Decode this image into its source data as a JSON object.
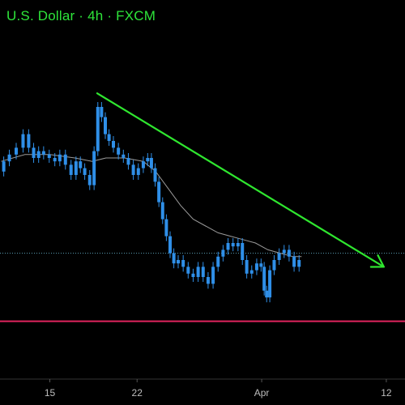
{
  "header": {
    "title": "U.S. Dollar · 4h · FXCM"
  },
  "colors": {
    "background": "#000000",
    "candle": "#2f8fe8",
    "moving_average": "#9a9a9a",
    "trendline": "#2fe62f",
    "support_line": "#e0245e",
    "price_line": "#5ba3b8",
    "title": "#2ee53a",
    "tick_text": "#bdbdbd"
  },
  "chart_data": {
    "type": "line",
    "title": "U.S. Dollar · 4h · FXCM",
    "xlabel": "",
    "ylabel": "",
    "grid": false,
    "x_ticks": [
      {
        "label": "15",
        "day": 15
      },
      {
        "label": "22",
        "day": 22
      },
      {
        "label": "Apr",
        "day": 32
      },
      {
        "label": "12",
        "day": 42
      }
    ],
    "xlim": [
      11.0,
      43.5
    ],
    "ylim": [
      0,
      100
    ],
    "series": [
      {
        "kind": "price",
        "points": [
          [
            11.1,
            61
          ],
          [
            11.5,
            64
          ],
          [
            12.0,
            66
          ],
          [
            12.6,
            68
          ],
          [
            13.1,
            72
          ],
          [
            13.5,
            68
          ],
          [
            13.9,
            65
          ],
          [
            14.3,
            67
          ],
          [
            14.7,
            66
          ],
          [
            15.2,
            65
          ],
          [
            15.6,
            64
          ],
          [
            16.0,
            66
          ],
          [
            16.5,
            63
          ],
          [
            16.9,
            60
          ],
          [
            17.3,
            64
          ],
          [
            17.6,
            62
          ],
          [
            18.0,
            60
          ],
          [
            18.4,
            57
          ],
          [
            18.7,
            67
          ],
          [
            19.0,
            80
          ],
          [
            19.3,
            77
          ],
          [
            19.6,
            72
          ],
          [
            19.9,
            70
          ],
          [
            20.3,
            68
          ],
          [
            20.7,
            66
          ],
          [
            21.1,
            65
          ],
          [
            21.5,
            63
          ],
          [
            21.9,
            60
          ],
          [
            22.3,
            62
          ],
          [
            22.7,
            64
          ],
          [
            23.0,
            65
          ],
          [
            23.3,
            62
          ],
          [
            23.6,
            58
          ],
          [
            23.9,
            52
          ],
          [
            24.2,
            47
          ],
          [
            24.5,
            42
          ],
          [
            24.8,
            37
          ],
          [
            25.1,
            34
          ],
          [
            25.5,
            35
          ],
          [
            25.9,
            33
          ],
          [
            26.3,
            31
          ],
          [
            26.7,
            30
          ],
          [
            27.1,
            33
          ],
          [
            27.5,
            30
          ],
          [
            27.9,
            28
          ],
          [
            28.3,
            33
          ],
          [
            28.7,
            36
          ],
          [
            29.1,
            38
          ],
          [
            29.5,
            40
          ],
          [
            29.9,
            39
          ],
          [
            30.3,
            40
          ],
          [
            30.6,
            35
          ],
          [
            31.0,
            31
          ],
          [
            31.4,
            32
          ],
          [
            31.8,
            34
          ],
          [
            32.1,
            33
          ],
          [
            32.3,
            26
          ],
          [
            32.5,
            24
          ],
          [
            32.8,
            32
          ],
          [
            33.2,
            35
          ],
          [
            33.6,
            37
          ],
          [
            34.0,
            38
          ],
          [
            34.4,
            36
          ],
          [
            34.8,
            33
          ],
          [
            35.2,
            35
          ]
        ]
      },
      {
        "kind": "moving-average",
        "points": [
          [
            11.1,
            64
          ],
          [
            13.0,
            66
          ],
          [
            15.0,
            66
          ],
          [
            17.0,
            65
          ],
          [
            18.4,
            64
          ],
          [
            19.5,
            65
          ],
          [
            21.0,
            65
          ],
          [
            22.5,
            64
          ],
          [
            23.5,
            61
          ],
          [
            24.5,
            56
          ],
          [
            25.5,
            51
          ],
          [
            26.5,
            47
          ],
          [
            27.5,
            45
          ],
          [
            28.5,
            43
          ],
          [
            29.5,
            42
          ],
          [
            30.5,
            41
          ],
          [
            31.5,
            40
          ],
          [
            32.5,
            38
          ],
          [
            33.5,
            37
          ],
          [
            34.5,
            36
          ],
          [
            35.2,
            36
          ]
        ]
      },
      {
        "kind": "trendline",
        "points": [
          [
            18.8,
            84
          ],
          [
            41.8,
            33
          ]
        ]
      },
      {
        "kind": "support-level",
        "y": 17
      },
      {
        "kind": "last-price",
        "y": 37
      }
    ]
  }
}
